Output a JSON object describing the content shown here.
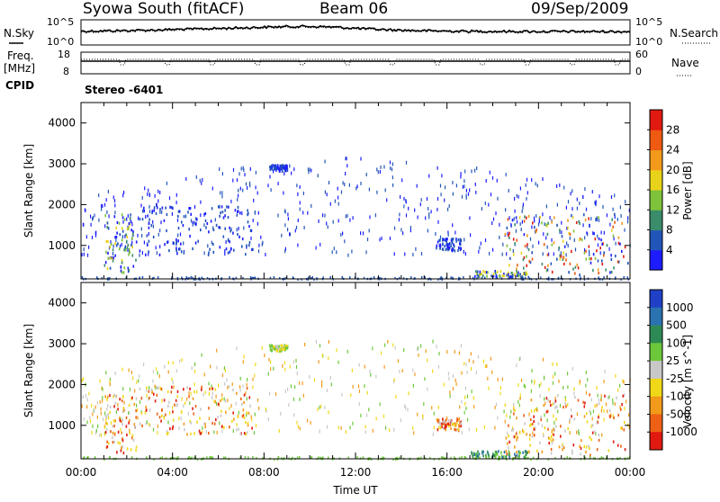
{
  "header": {
    "station": "Syowa South (fitACF)",
    "beam": "Beam 06",
    "date": "09/Sep/2009"
  },
  "strip": {
    "nsky_label": "N.Sky",
    "nsearch_label": "N.Search",
    "freq_label": "Freq.",
    "freq_unit": "[MHz]",
    "nave_label": "Nave",
    "cpid_label": "CPID",
    "cpid_value": "Stereo -6401",
    "noise_ticks_left": [
      "10^5",
      "10^0"
    ],
    "noise_ticks_right": [
      "10^5",
      "10^0"
    ],
    "freq_ticks": [
      "18",
      "8"
    ],
    "nave_ticks": [
      "60",
      "0"
    ]
  },
  "chart_data": [
    {
      "type": "heatmap",
      "quantity": "Power",
      "ylabel": "Slant Range [km]",
      "xlabel": "",
      "ylim": [
        180,
        4500
      ],
      "xlim_hours": [
        0,
        24
      ],
      "yticks": [
        "1000",
        "2000",
        "3000",
        "4000"
      ],
      "colorbar": {
        "label": "Power [dB]",
        "ticks": [
          "4",
          "8",
          "12",
          "16",
          "20",
          "24",
          "28"
        ],
        "colors": [
          "#1c1cff",
          "#2255b8",
          "#3a8c6a",
          "#7dc23a",
          "#e8d21a",
          "#f39a1a",
          "#ee5a12",
          "#e01a10"
        ]
      },
      "regions": [
        {
          "t": [
            1.0,
            2.4
          ],
          "r": [
            350,
            1800
          ],
          "level": "mid"
        },
        {
          "t": [
            2.5,
            7.5
          ],
          "r": [
            800,
            2000
          ],
          "level": "low"
        },
        {
          "t": [
            8.2,
            9.0
          ],
          "r": [
            2850,
            3000
          ],
          "level": "low"
        },
        {
          "t": [
            15.5,
            16.6
          ],
          "r": [
            900,
            1200
          ],
          "level": "low"
        },
        {
          "t": [
            18.5,
            23.9
          ],
          "r": [
            300,
            1800
          ],
          "level": "high"
        },
        {
          "t": [
            17.0,
            19.5
          ],
          "r": [
            250,
            400
          ],
          "level": "mid"
        }
      ]
    },
    {
      "type": "heatmap",
      "quantity": "Velocity",
      "ylabel": "Slant Range [km]",
      "xlabel": "Time UT",
      "ylim": [
        180,
        4500
      ],
      "xlim_hours": [
        0,
        24
      ],
      "yticks": [
        "1000",
        "2000",
        "3000",
        "4000"
      ],
      "xticks": [
        "00:00",
        "04:00",
        "08:00",
        "12:00",
        "16:00",
        "20:00",
        "00:00"
      ],
      "colorbar": {
        "label": "Velocity [m s^-1]",
        "ticks": [
          "1000",
          "500",
          "100",
          "25",
          "-25",
          "-100",
          "-500",
          "-1000"
        ],
        "colors": [
          "#2040c8",
          "#2a72b0",
          "#2e8a55",
          "#6cc83a",
          "#c8c8c8",
          "#f0d818",
          "#f29a1a",
          "#ee6016",
          "#e01a10"
        ]
      },
      "regions": [
        {
          "t": [
            1.0,
            2.4
          ],
          "r": [
            350,
            1800
          ],
          "level": "neg"
        },
        {
          "t": [
            2.5,
            7.5
          ],
          "r": [
            800,
            2000
          ],
          "level": "neg"
        },
        {
          "t": [
            8.2,
            9.0
          ],
          "r": [
            2850,
            3000
          ],
          "level": "near"
        },
        {
          "t": [
            15.5,
            16.6
          ],
          "r": [
            900,
            1200
          ],
          "level": "neg"
        },
        {
          "t": [
            18.5,
            23.9
          ],
          "r": [
            300,
            1800
          ],
          "level": "neg"
        },
        {
          "t": [
            17.0,
            19.5
          ],
          "r": [
            250,
            400
          ],
          "level": "pos"
        }
      ]
    }
  ]
}
